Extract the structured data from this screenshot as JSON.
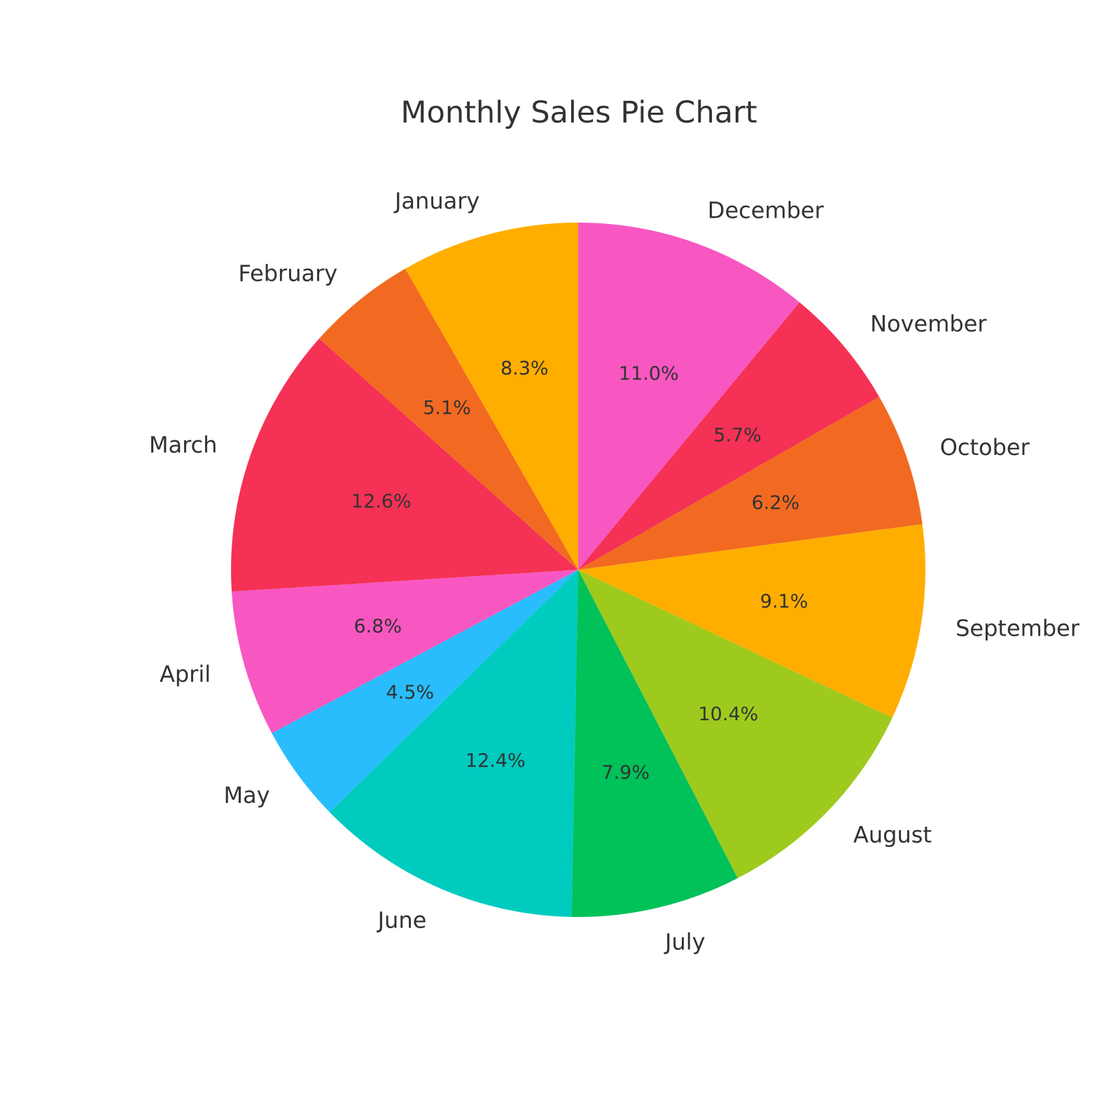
{
  "chart_data": {
    "type": "pie",
    "title": "Monthly Sales Pie Chart",
    "start": "top",
    "direction": "counterclockwise",
    "slices": [
      {
        "label": "January",
        "pct_label": "8.3%",
        "value": 8.3,
        "color": "#FFAE00"
      },
      {
        "label": "February",
        "pct_label": "5.1%",
        "value": 5.1,
        "color": "#F26A21"
      },
      {
        "label": "March",
        "pct_label": "12.6%",
        "value": 12.6,
        "color": "#F53155"
      },
      {
        "label": "April",
        "pct_label": "6.8%",
        "value": 6.8,
        "color": "#F857C1"
      },
      {
        "label": "May",
        "pct_label": "4.5%",
        "value": 4.5,
        "color": "#29BDFD"
      },
      {
        "label": "June",
        "pct_label": "12.4%",
        "value": 12.4,
        "color": "#00CBBF"
      },
      {
        "label": "July",
        "pct_label": "7.9%",
        "value": 7.9,
        "color": "#01C159"
      },
      {
        "label": "August",
        "pct_label": "10.4%",
        "value": 10.4,
        "color": "#9ECA1D"
      },
      {
        "label": "September",
        "pct_label": "9.1%",
        "value": 9.1,
        "color": "#FFAE00"
      },
      {
        "label": "October",
        "pct_label": "6.2%",
        "value": 6.2,
        "color": "#F26A21"
      },
      {
        "label": "November",
        "pct_label": "5.7%",
        "value": 5.7,
        "color": "#F53155"
      },
      {
        "label": "December",
        "pct_label": "11.0%",
        "value": 11.0,
        "color": "#F857C1"
      }
    ]
  }
}
